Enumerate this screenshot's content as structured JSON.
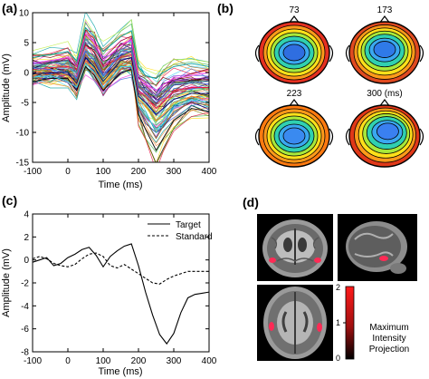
{
  "panels": {
    "a": {
      "label": "(a)"
    },
    "b": {
      "label": "(b)"
    },
    "c": {
      "label": "(c)"
    },
    "d": {
      "label": "(d)"
    }
  },
  "chart_data": [
    {
      "type": "line",
      "panel": "(a)",
      "xlabel": "Time (ms)",
      "ylabel": "Amplitude (mV)",
      "xlim": [
        -100,
        400
      ],
      "ylim": [
        -15,
        10
      ],
      "xticks": [
        -100,
        0,
        100,
        200,
        300,
        400
      ],
      "yticks": [
        10,
        5,
        0,
        -5,
        -10,
        -15
      ],
      "x": [
        -100,
        -50,
        0,
        25,
        50,
        75,
        100,
        150,
        180,
        200,
        220,
        250,
        270,
        300,
        350,
        400
      ],
      "series": [
        {
          "values": [
            0.5,
            0.8,
            1.0,
            0.5,
            4.5,
            3.5,
            1.0,
            2.5,
            3.0,
            -3.0,
            -4.0,
            -6.0,
            -5.0,
            -3.0,
            -2.5,
            -2.5
          ]
        },
        {
          "values": [
            -0.5,
            0.2,
            -0.5,
            -2.0,
            2.0,
            0.5,
            -2.0,
            1.5,
            2.0,
            -4.5,
            -5.5,
            -8.0,
            -7.0,
            -5.0,
            -4.0,
            -4.5
          ]
        },
        {
          "values": [
            1.5,
            2.0,
            2.5,
            1.0,
            6.5,
            5.0,
            2.0,
            4.5,
            5.5,
            -1.0,
            -2.0,
            -3.0,
            -2.0,
            -1.0,
            -0.5,
            0.0
          ]
        },
        {
          "values": [
            0.0,
            -0.5,
            0.5,
            -1.5,
            3.0,
            1.5,
            -1.0,
            2.0,
            1.5,
            -6.0,
            -8.0,
            -11.0,
            -9.0,
            -6.5,
            -5.0,
            -5.5
          ]
        },
        {
          "values": [
            -1.5,
            -1.0,
            -1.0,
            -3.0,
            1.0,
            -0.5,
            -3.0,
            0.0,
            0.5,
            -7.0,
            -9.5,
            -13.0,
            -11.0,
            -8.0,
            -6.0,
            -6.5
          ]
        },
        {
          "values": [
            2.5,
            3.0,
            3.5,
            2.0,
            7.5,
            6.0,
            3.5,
            6.0,
            7.0,
            1.0,
            -0.5,
            -1.0,
            0.0,
            1.0,
            1.5,
            1.0
          ]
        },
        {
          "values": [
            0.8,
            0.5,
            0.0,
            -1.0,
            3.5,
            2.0,
            -0.5,
            3.0,
            3.5,
            -2.5,
            -3.5,
            -5.0,
            -4.0,
            -2.0,
            -1.5,
            -2.0
          ]
        },
        {
          "values": [
            -0.8,
            -0.5,
            -1.5,
            -2.5,
            1.5,
            0.0,
            -2.5,
            1.0,
            1.0,
            -5.5,
            -7.0,
            -9.5,
            -8.5,
            -6.0,
            -4.5,
            -5.0
          ]
        },
        {
          "values": [
            1.0,
            1.5,
            2.0,
            0.0,
            5.5,
            4.0,
            1.5,
            3.5,
            4.0,
            -2.0,
            -3.0,
            -4.0,
            -3.0,
            -2.0,
            -1.5,
            -1.5
          ]
        },
        {
          "values": [
            -0.2,
            0.0,
            0.0,
            -1.8,
            2.5,
            1.0,
            -1.5,
            2.0,
            2.5,
            -4.0,
            -5.0,
            -7.0,
            -6.0,
            -4.5,
            -3.5,
            -3.5
          ]
        }
      ]
    },
    {
      "type": "line",
      "panel": "(c)",
      "xlabel": "Time (ms)",
      "ylabel": "Amplitude (mV)",
      "xlim": [
        -100,
        400
      ],
      "ylim": [
        -8,
        4
      ],
      "xticks": [
        -100,
        0,
        100,
        200,
        300,
        400
      ],
      "yticks": [
        4,
        2,
        0,
        -2,
        -4,
        -6,
        -8
      ],
      "legend": "top-right",
      "series": [
        {
          "name": "Target",
          "style": "solid",
          "x": [
            -100,
            -80,
            -60,
            -40,
            -20,
            0,
            20,
            40,
            60,
            80,
            100,
            120,
            140,
            160,
            180,
            200,
            220,
            240,
            260,
            280,
            300,
            320,
            340,
            360,
            380,
            400
          ],
          "values": [
            -0.2,
            0.0,
            0.2,
            -0.5,
            -0.3,
            0.2,
            0.5,
            0.9,
            1.1,
            0.4,
            -0.6,
            0.3,
            0.8,
            1.2,
            1.4,
            -0.5,
            -2.8,
            -4.8,
            -6.5,
            -7.3,
            -6.4,
            -4.6,
            -3.3,
            -3.0,
            -2.9,
            -2.8
          ]
        },
        {
          "name": "Standard",
          "style": "dashed",
          "x": [
            -100,
            -80,
            -60,
            -40,
            -20,
            0,
            20,
            40,
            60,
            80,
            100,
            120,
            140,
            160,
            180,
            200,
            220,
            240,
            260,
            280,
            300,
            320,
            340,
            360,
            380,
            400
          ],
          "values": [
            0.1,
            0.3,
            0.1,
            -0.3,
            -0.5,
            -0.6,
            -0.4,
            0.1,
            0.5,
            0.6,
            0.3,
            -0.5,
            -0.7,
            -0.4,
            -0.8,
            -1.2,
            -1.6,
            -2.0,
            -2.1,
            -1.7,
            -1.4,
            -1.2,
            -1.0,
            -1.0,
            -1.0,
            -1.0
          ]
        }
      ]
    }
  ],
  "topomaps": [
    {
      "label": "73",
      "hot": "#e53020",
      "center": "#2f6ee0"
    },
    {
      "label": "173",
      "hot": "#e04a20",
      "center": "#2f7ae8"
    },
    {
      "label": "223",
      "hot": "#ff7a10",
      "center": "#3a8af0"
    },
    {
      "label": "300 (ms)",
      "hot": "#e03818",
      "center": "#3a80f0"
    }
  ],
  "mri": {
    "colorbar": {
      "ticks": [
        "2",
        "1",
        "0"
      ],
      "caption": [
        "Maximum",
        "Intensity",
        "Projection"
      ]
    }
  },
  "colors": {
    "axis": "#000000",
    "target_line": "#000000",
    "standard_line": "#000000",
    "colorbar_top": "#ff2020",
    "colorbar_bottom": "#000000"
  }
}
